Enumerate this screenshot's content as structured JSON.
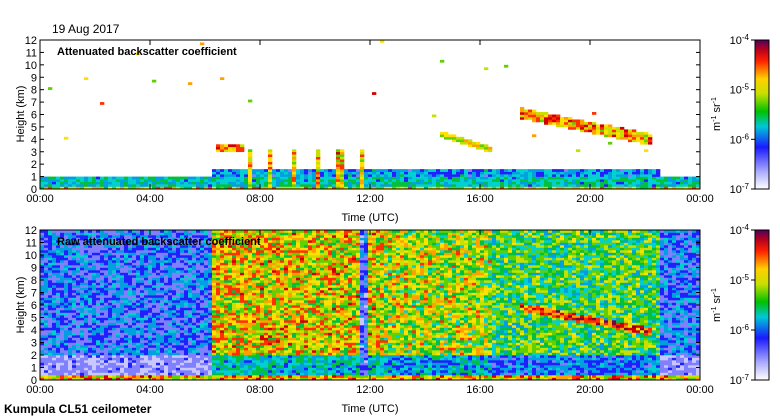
{
  "date_label": "19 Aug 2017",
  "footer": "Kumpula CL51 ceilometer",
  "chart_data": [
    {
      "type": "heatmap",
      "title": "Attenuated backscatter coefficient",
      "xlabel": "Time (UTC)",
      "ylabel": "Height (km)",
      "x_ticks": [
        "00:00",
        "04:00",
        "08:00",
        "12:00",
        "16:00",
        "20:00",
        "00:00"
      ],
      "x_range_hours": [
        0,
        24
      ],
      "y_ticks": [
        0,
        1,
        2,
        3,
        4,
        5,
        6,
        7,
        8,
        9,
        10,
        11,
        12
      ],
      "ylim": [
        0,
        12
      ],
      "colorbar": {
        "scale": "log",
        "range": [
          "1e-7",
          "1e-4"
        ],
        "tick_labels": [
          "10-4",
          "10-5",
          "10-6",
          "10-7"
        ],
        "label": "m-1 sr-1"
      },
      "features": [
        {
          "name": "boundary layer",
          "time_h": [
            0,
            24
          ],
          "height_km": [
            0,
            1.2
          ]
        },
        {
          "name": "cloud layer",
          "time_h": [
            6.4,
            7.4
          ],
          "height_km": [
            3.0,
            3.7
          ]
        },
        {
          "name": "cloud layer",
          "time_h": [
            17.4,
            22.2
          ],
          "height_km": [
            4.0,
            6.5
          ]
        },
        {
          "name": "cloud layer",
          "time_h": [
            14.6,
            16.4
          ],
          "height_km": [
            3.0,
            4.6
          ]
        },
        {
          "name": "precipitation columns",
          "time_h": [
            7.5,
            12.5
          ],
          "height_km": [
            0,
            3.5
          ]
        }
      ]
    },
    {
      "type": "heatmap",
      "title": "Raw attenuated backscatter coefficient",
      "xlabel": "Time (UTC)",
      "ylabel": "Height (km)",
      "x_ticks": [
        "00:00",
        "04:00",
        "08:00",
        "12:00",
        "16:00",
        "20:00",
        "00:00"
      ],
      "x_range_hours": [
        0,
        24
      ],
      "y_ticks": [
        0,
        1,
        2,
        3,
        4,
        5,
        6,
        7,
        8,
        9,
        10,
        11,
        12
      ],
      "ylim": [
        0,
        12
      ],
      "colorbar": {
        "scale": "log",
        "range": [
          "1e-7",
          "1e-4"
        ],
        "tick_labels": [
          "10-4",
          "10-5",
          "10-6",
          "10-7"
        ],
        "label": "m-1 sr-1"
      }
    }
  ]
}
